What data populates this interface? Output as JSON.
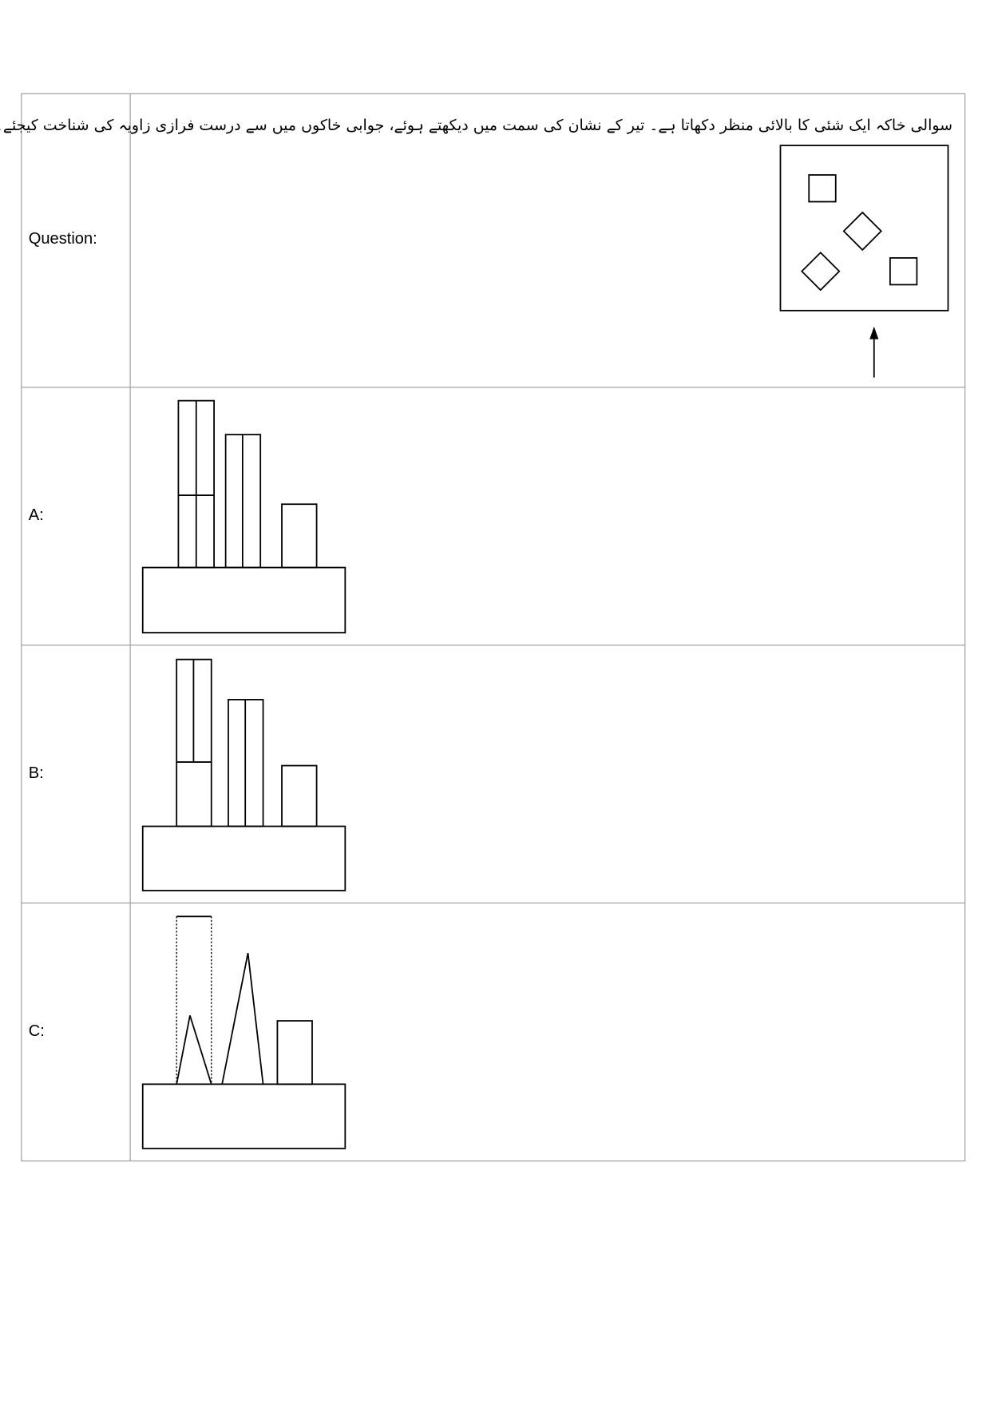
{
  "question": {
    "label": "Question:",
    "text": "سوالی خاکہ ایک شئی کا بالائی منظر دکھاتا ہے۔ تیر کے نشان کی سمت میں دیکھتے ہوئے، جوابی خاکوں میں سے درست فرازی زاویہ کی شناخت کیجئے۔"
  },
  "options": [
    {
      "label": "A:"
    },
    {
      "label": "B:"
    },
    {
      "label": "C:"
    }
  ]
}
